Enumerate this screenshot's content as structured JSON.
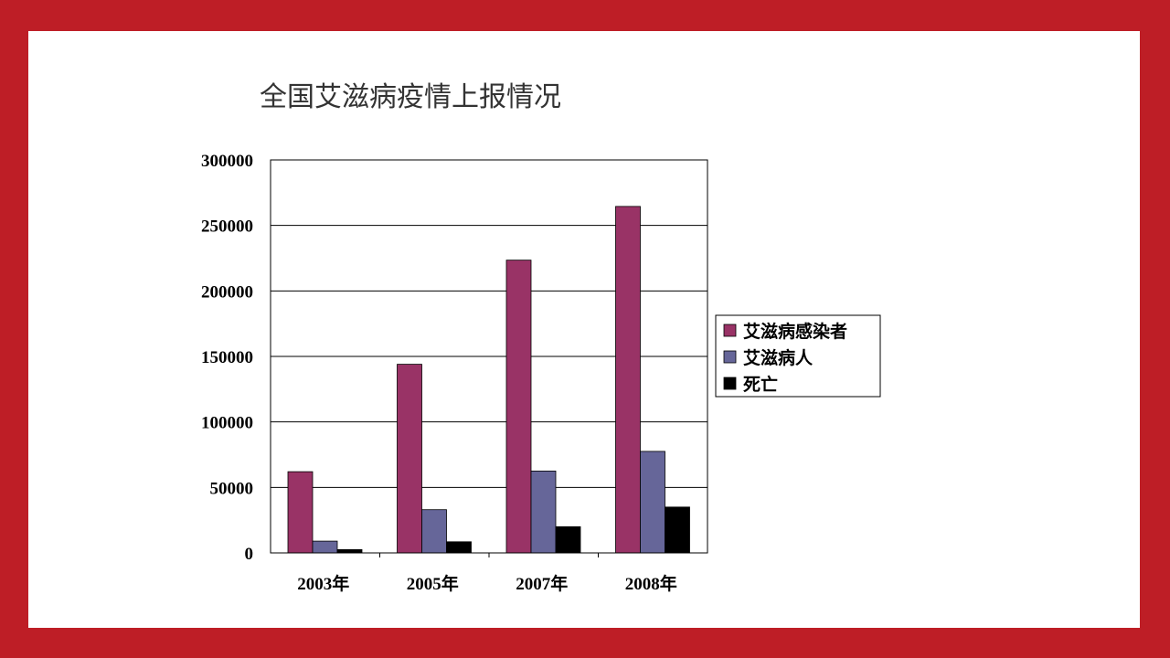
{
  "colors": {
    "frame": "#be1e26",
    "slide_background": "#ffffff",
    "series": [
      "#993366",
      "#666699",
      "#000000"
    ]
  },
  "chart_data": {
    "type": "bar",
    "title": "全国艾滋病疫情上报情况",
    "xlabel": "",
    "ylabel": "",
    "categories": [
      "2003年",
      "2005年",
      "2007年",
      "2008年"
    ],
    "series": [
      {
        "name": "艾滋病感染者",
        "color": "#993366",
        "values": [
          62000,
          144000,
          223500,
          264500
        ]
      },
      {
        "name": "艾滋病人",
        "color": "#666699",
        "values": [
          9000,
          33000,
          62500,
          77500
        ]
      },
      {
        "name": "死亡",
        "color": "#000000",
        "values": [
          2500,
          8500,
          20000,
          35000
        ]
      }
    ],
    "ylim": [
      0,
      300000
    ],
    "yticks": [
      "0",
      "50000",
      "100000",
      "150000",
      "200000",
      "250000",
      "300000"
    ],
    "grid": true,
    "legend": "right"
  }
}
